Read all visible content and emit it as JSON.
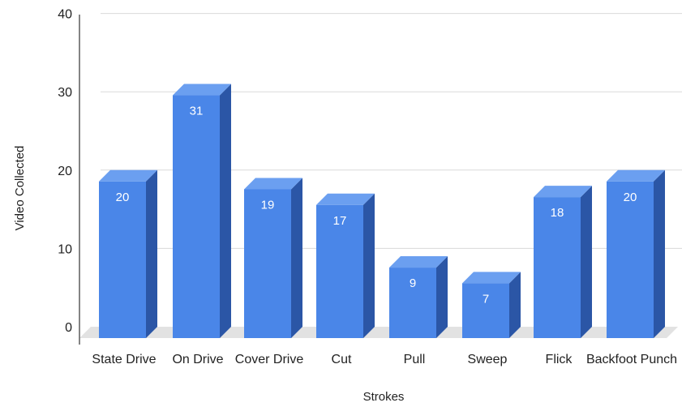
{
  "chart_data": {
    "type": "bar",
    "style": "3d-column",
    "xlabel": "Strokes",
    "ylabel": "Video Collected",
    "ylim": [
      0,
      40
    ],
    "yticks": [
      0,
      10,
      20,
      30,
      40
    ],
    "grid": true,
    "categories": [
      "State Drive",
      "On Drive",
      "Cover Drive",
      "Cut",
      "Pull",
      "Sweep",
      "Flick",
      "Backfoot Punch"
    ],
    "values": [
      20,
      31,
      19,
      17,
      9,
      7,
      18,
      20
    ],
    "colors": {
      "front": "#4a86e8",
      "side": "#2b56a6",
      "top": "#6b9ff0",
      "floor": "#e2e2e2",
      "grid": "#d9d9d9",
      "axis": "#333333"
    }
  }
}
